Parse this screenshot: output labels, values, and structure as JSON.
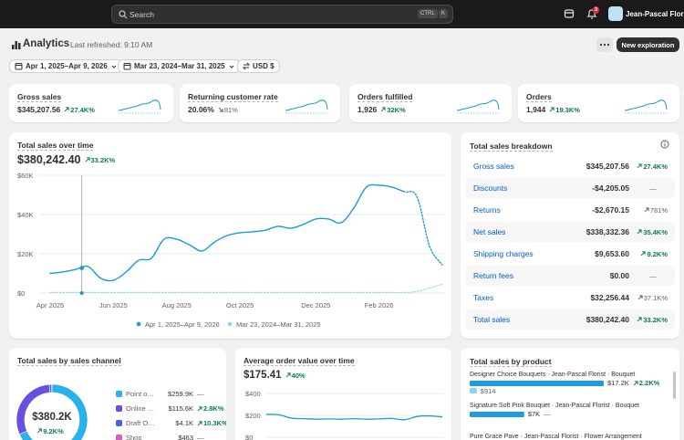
{
  "topbar": {
    "search": "Search",
    "keys": [
      "CTRL",
      "K"
    ],
    "notifications": "3",
    "store": "Jean-Pascal Florist"
  },
  "header": {
    "title": "Analytics",
    "refreshed": "Last refreshed: 9:10 AM",
    "button": "New exploration"
  },
  "filters": [
    "Apr 1, 2025–Apr 9, 2026",
    "Mar 23, 2024–Mar 31, 2025",
    "USD $"
  ],
  "kpis": [
    {
      "title": "Gross sales",
      "value": "$345,207.56",
      "change": "27.4K%",
      "trend": "up"
    },
    {
      "title": "Returning customer rate",
      "value": "20.06%",
      "change": "81%",
      "trend": "down-muted"
    },
    {
      "title": "Orders fulfilled",
      "value": "1,926",
      "change": "32K%",
      "trend": "up"
    },
    {
      "title": "Orders",
      "value": "1,944",
      "change": "19.3K%",
      "trend": "up"
    }
  ],
  "sales_chart": {
    "type": "line",
    "title": "Total sales over time",
    "value": "$380,242.40",
    "change": "33.2K%",
    "trend": "up",
    "categories": [
      "Apr 2025",
      null,
      null,
      null,
      null,
      "Jun 2025",
      null,
      null,
      null,
      null,
      "Aug 2025",
      null,
      null,
      null,
      null,
      "Oct 2025",
      null,
      null,
      null,
      null,
      null,
      "Dec 2025",
      null,
      null,
      null,
      null,
      "Feb 2026",
      null,
      null,
      null,
      null,
      null
    ],
    "series": [
      {
        "name": "Apr 1, 2025–Apr 9, 2026",
        "color": "#1a9ad6",
        "dashed_from": 28,
        "values": [
          10000,
          10700,
          12000,
          13500,
          7500,
          6500,
          10700,
          16700,
          17700,
          27400,
          27400,
          24600,
          21400,
          26000,
          29300,
          30700,
          31200,
          32000,
          34000,
          33000,
          34900,
          37700,
          37700,
          35800,
          43300,
          54000,
          54900,
          54000,
          51600,
          49000,
          23700,
          14400
        ]
      },
      {
        "name": "Mar 23, 2024–Mar 31, 2025",
        "color": "#8fd0ee",
        "dashed_from": 0,
        "values": [
          300,
          300,
          300,
          300,
          300,
          300,
          300,
          300,
          300,
          300,
          300,
          300,
          300,
          300,
          300,
          300,
          300,
          300,
          300,
          300,
          300,
          300,
          300,
          300,
          300,
          300,
          300,
          300,
          300,
          800,
          2500,
          4600
        ]
      }
    ],
    "ylim": [
      0,
      60000
    ],
    "yticks": [
      {
        "value": 0,
        "label": "$0"
      },
      {
        "value": 20000,
        "label": "$20K"
      },
      {
        "value": 40000,
        "label": "$40K"
      },
      {
        "value": 60000,
        "label": "$60K"
      }
    ],
    "grid": true
  },
  "breakdown": {
    "title": "Total sales breakdown",
    "rows": [
      {
        "name": "Gross sales",
        "value": "$345,207.56",
        "change": "27.4K%",
        "trend": "up"
      },
      {
        "name": "Discounts",
        "value": "-$4,205.05",
        "change": "—",
        "trend": "none"
      },
      {
        "name": "Returns",
        "value": "-$2,670.15",
        "change": "781%",
        "trend": "up-muted"
      },
      {
        "name": "Net sales",
        "value": "$338,332.36",
        "change": "35.4K%",
        "trend": "up"
      },
      {
        "name": "Shipping charges",
        "value": "$9,653.60",
        "change": "9.2K%",
        "trend": "up"
      },
      {
        "name": "Return fees",
        "value": "$0.00",
        "change": "—",
        "trend": "none"
      },
      {
        "name": "Taxes",
        "value": "$32,256.44",
        "change": "37.1K%",
        "trend": "up-muted"
      },
      {
        "name": "Total sales",
        "value": "$380,242.40",
        "change": "33.2K%",
        "trend": "up"
      }
    ]
  },
  "channel": {
    "type": "donut",
    "title": "Total sales by sales channel",
    "total": "$380.2K",
    "change": "9.2K%",
    "trend": "up",
    "items": [
      {
        "name": "Point o…",
        "value": 259900,
        "value_label": "$259.9K",
        "change": "—",
        "trend": "none",
        "color": "#2ab0ec"
      },
      {
        "name": "Online …",
        "value": 115600,
        "value_label": "$115.6K",
        "change": "2.8K%",
        "trend": "up",
        "color": "#6b4fe0"
      },
      {
        "name": "Draft O…",
        "value": 4100,
        "value_label": "$4.1K",
        "change": "10.3K%",
        "trend": "up",
        "color": "#4a63dc"
      },
      {
        "name": "Shop",
        "value": 463,
        "value_label": "$463",
        "change": "—",
        "trend": "none",
        "color": "#d35fc0"
      }
    ]
  },
  "aov": {
    "type": "line",
    "title": "Average order value over time",
    "value": "$175.41",
    "change": "40%",
    "trend": "up",
    "color": "#1a9ad6",
    "values": [
      210,
      205,
      175,
      170,
      165,
      168,
      165,
      170,
      165,
      168,
      172,
      160,
      190,
      195,
      185
    ],
    "ylim": [
      0,
      400
    ],
    "yticks": [
      {
        "value": 0,
        "label": "$0"
      },
      {
        "value": 200,
        "label": "$200"
      },
      {
        "value": 400,
        "label": "$400"
      }
    ],
    "grid": true
  },
  "products": {
    "type": "bar",
    "title": "Total sales by product",
    "color": "#1e9be6",
    "prev_color": "#8dcff0",
    "rows": [
      {
        "name": "Designer Choice Bouquets · Jean-Pascal Florist · Bouquet",
        "value": 17200,
        "value_label": "$17.2K",
        "change": "2.2K%",
        "trend": "up",
        "prev": 914,
        "prev_label": "$914"
      },
      {
        "name": "Signature Soft Pink Bouquet · Jean-Pascal Florist · Bouquet",
        "value": 7000,
        "value_label": "$7K",
        "change": "—",
        "trend": "none"
      },
      {
        "name": "Pure Grace Pave · Jean-Pascal Florist · Flower Arrangement"
      }
    ]
  }
}
